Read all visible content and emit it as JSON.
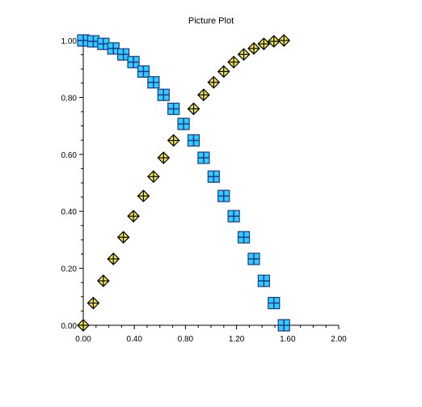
{
  "chart_data": {
    "type": "scatter",
    "title": "Picture Plot",
    "xlabel": "",
    "ylabel": "",
    "xlim": [
      0,
      2.0
    ],
    "ylim": [
      0,
      1.0
    ],
    "grid": false,
    "x_ticks": [
      "0.00",
      "0.40",
      "0.80",
      "1.20",
      "1.60",
      "2.00"
    ],
    "y_ticks": [
      "0.00",
      "0.20",
      "0.40",
      "0.60",
      "0.80",
      "1.00"
    ],
    "series": [
      {
        "marker": "diamond-cross",
        "color": "#f5e84a",
        "x": [
          0.0,
          0.0785,
          0.1571,
          0.2356,
          0.3142,
          0.3927,
          0.4712,
          0.5498,
          0.6283,
          0.7069,
          0.7854,
          0.8639,
          0.9425,
          1.021,
          1.0996,
          1.1781,
          1.2566,
          1.3352,
          1.4137,
          1.4923,
          1.5708
        ],
        "y": [
          0.0,
          0.078,
          0.156,
          0.233,
          0.309,
          0.383,
          0.454,
          0.522,
          0.588,
          0.649,
          0.707,
          0.76,
          0.809,
          0.853,
          0.891,
          0.924,
          0.951,
          0.972,
          0.988,
          0.997,
          1.0
        ]
      },
      {
        "marker": "square-cross",
        "color": "#33ccff",
        "x": [
          0.0,
          0.0785,
          0.1571,
          0.2356,
          0.3142,
          0.3927,
          0.4712,
          0.5498,
          0.6283,
          0.7069,
          0.7854,
          0.8639,
          0.9425,
          1.021,
          1.0996,
          1.1781,
          1.2566,
          1.3352,
          1.4137,
          1.4923,
          1.5708
        ],
        "y": [
          1.0,
          0.997,
          0.988,
          0.972,
          0.951,
          0.924,
          0.891,
          0.853,
          0.809,
          0.76,
          0.707,
          0.649,
          0.588,
          0.522,
          0.454,
          0.383,
          0.309,
          0.233,
          0.156,
          0.078,
          0.0
        ]
      }
    ]
  }
}
